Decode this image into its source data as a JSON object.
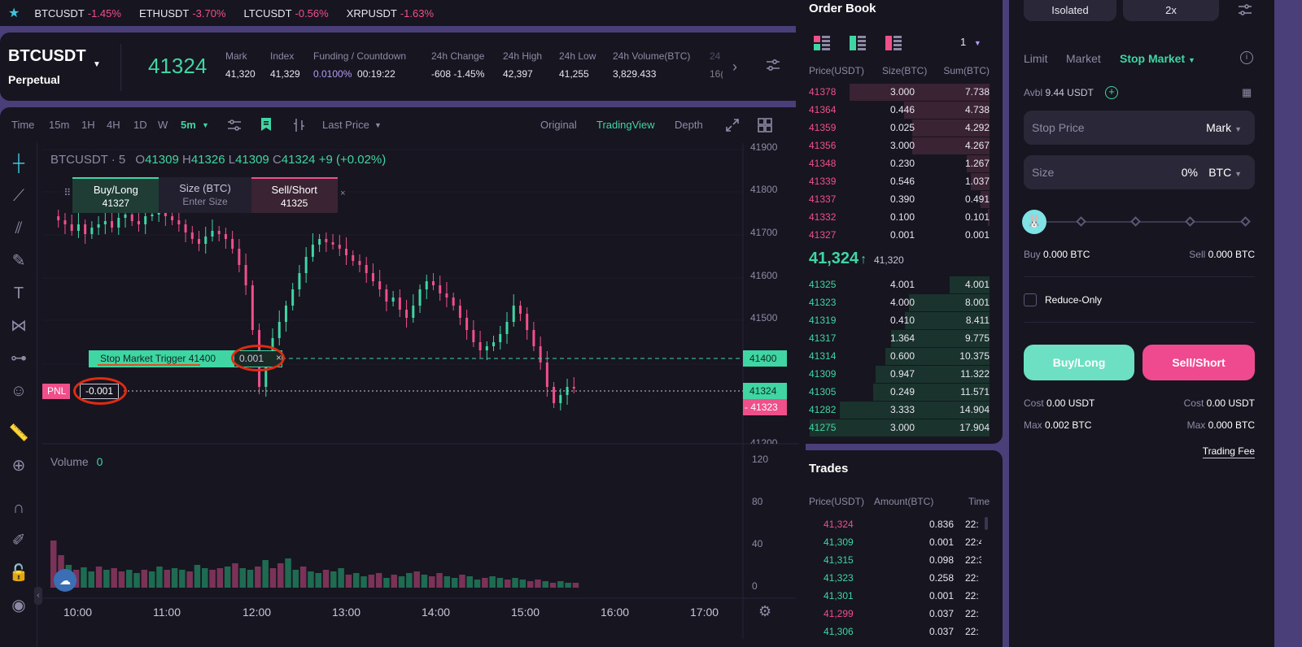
{
  "ticker": {
    "items": [
      {
        "symbol": "BTCUSDT",
        "change": "-1.45%"
      },
      {
        "symbol": "ETHUSDT",
        "change": "-3.70%"
      },
      {
        "symbol": "LTCUSDT",
        "change": "-0.56%"
      },
      {
        "symbol": "XRPUSDT",
        "change": "-1.63%"
      }
    ]
  },
  "header": {
    "symbol": "BTCUSDT",
    "contract": "Perpetual",
    "last_price": "41324",
    "stats": [
      {
        "label": "Mark",
        "value": "41,320"
      },
      {
        "label": "Index",
        "value": "41,329"
      },
      {
        "label": "Funding / Countdown",
        "value": "0.0100%",
        "value2": "00:19:22"
      },
      {
        "label": "24h Change",
        "value": "-608 -1.45%"
      },
      {
        "label": "24h High",
        "value": "42,397"
      },
      {
        "label": "24h Low",
        "value": "41,255"
      },
      {
        "label": "24h Volume(BTC)",
        "value": "3,829.433"
      },
      {
        "label": "24",
        "value": "16("
      }
    ]
  },
  "toolbar": {
    "intervals": [
      "Time",
      "15m",
      "1H",
      "4H",
      "1D",
      "W",
      "5m"
    ],
    "price_type": "Last Price",
    "views": [
      "Original",
      "TradingView",
      "Depth"
    ]
  },
  "chart": {
    "legend": {
      "symbol": "BTCUSDT",
      "interval": "5",
      "o_label": "O",
      "o": "41309",
      "h_label": "H",
      "h": "41326",
      "l_label": "L",
      "l": "41309",
      "c_label": "C",
      "c": "41324",
      "chg": "+9 (+0.02%)"
    },
    "quick_order": {
      "buy_label": "Buy/Long",
      "buy_price": "41327",
      "size_label": "Size (BTC)",
      "size_placeholder": "Enter Size",
      "sell_label": "Sell/Short",
      "sell_price": "41325"
    },
    "trigger_label": "Stop Market Trigger 41400",
    "trigger_qty": "0.001",
    "pnl_label": "PNL",
    "pnl_qty": "-0.001",
    "price_axis": [
      "41900",
      "41800",
      "41700",
      "41600",
      "41500",
      "41400",
      "41324",
      "41323",
      "41200"
    ],
    "volume_label": "Volume",
    "volume_value": "0",
    "volume_axis": [
      "120",
      "80",
      "40",
      "0"
    ],
    "time_axis": [
      "10:00",
      "11:00",
      "12:00",
      "13:00",
      "14:00",
      "15:00",
      "16:00",
      "17:00"
    ],
    "colors": {
      "up": "#3fd6a3",
      "down": "#f0508a"
    }
  },
  "orderbook": {
    "title": "Order Book",
    "depth_select": "1",
    "headers": [
      "Price(USDT)",
      "Size(BTC)",
      "Sum(BTC)"
    ],
    "asks": [
      [
        "41378",
        "3.000",
        "7.738"
      ],
      [
        "41364",
        "0.446",
        "4.738"
      ],
      [
        "41359",
        "0.025",
        "4.292"
      ],
      [
        "41356",
        "3.000",
        "4.267"
      ],
      [
        "41348",
        "0.230",
        "1.267"
      ],
      [
        "41339",
        "0.546",
        "1.037"
      ],
      [
        "41337",
        "0.390",
        "0.491"
      ],
      [
        "41332",
        "0.100",
        "0.101"
      ],
      [
        "41327",
        "0.001",
        "0.001"
      ]
    ],
    "mid_price": "41,324",
    "mid_arrow": "↑",
    "mark_price": "41,320",
    "bids": [
      [
        "41325",
        "4.001",
        "4.001"
      ],
      [
        "41323",
        "4.000",
        "8.001"
      ],
      [
        "41319",
        "0.410",
        "8.411"
      ],
      [
        "41317",
        "1.364",
        "9.775"
      ],
      [
        "41314",
        "0.600",
        "10.375"
      ],
      [
        "41309",
        "0.947",
        "11.322"
      ],
      [
        "41305",
        "0.249",
        "11.571"
      ],
      [
        "41282",
        "3.333",
        "14.904"
      ],
      [
        "41275",
        "3.000",
        "17.904"
      ]
    ]
  },
  "trades": {
    "title": "Trades",
    "headers": [
      "Price(USDT)",
      "Amount(BTC)",
      "Time"
    ],
    "rows": [
      {
        "price": "41,324",
        "amount": "0.836",
        "time": "22:",
        "side": "down"
      },
      {
        "price": "41,309",
        "amount": "0.001",
        "time": "22:4",
        "side": "up"
      },
      {
        "price": "41,315",
        "amount": "0.098",
        "time": "22:3",
        "side": "up"
      },
      {
        "price": "41,323",
        "amount": "0.258",
        "time": "22:",
        "side": "up"
      },
      {
        "price": "41,301",
        "amount": "0.001",
        "time": "22:",
        "side": "up"
      },
      {
        "price": "41,299",
        "amount": "0.037",
        "time": "22:",
        "side": "down"
      },
      {
        "price": "41,306",
        "amount": "0.037",
        "time": "22:",
        "side": "up"
      }
    ]
  },
  "form": {
    "margin_mode": "Isolated",
    "leverage": "2x",
    "tabs": [
      "Limit",
      "Market",
      "Stop Market"
    ],
    "avbl_label": "Avbl",
    "avbl_value": "9.44 USDT",
    "stop_price_label": "Stop Price",
    "stop_price_type": "Mark",
    "size_label": "Size",
    "size_pct": "0%",
    "size_unit": "BTC",
    "slider_value_pct": 0,
    "buy_label": "Buy",
    "buy_value": "0.000 BTC",
    "sell_label": "Sell",
    "sell_value": "0.000 BTC",
    "reduce_only": "Reduce-Only",
    "buy_button": "Buy/Long",
    "sell_button": "Sell/Short",
    "cost_label": "Cost",
    "cost_buy": "0.00 USDT",
    "cost_sell": "0.00 USDT",
    "max_label": "Max",
    "max_buy": "0.002 BTC",
    "max_sell": "0.000 BTC",
    "trading_fee": "Trading Fee"
  }
}
